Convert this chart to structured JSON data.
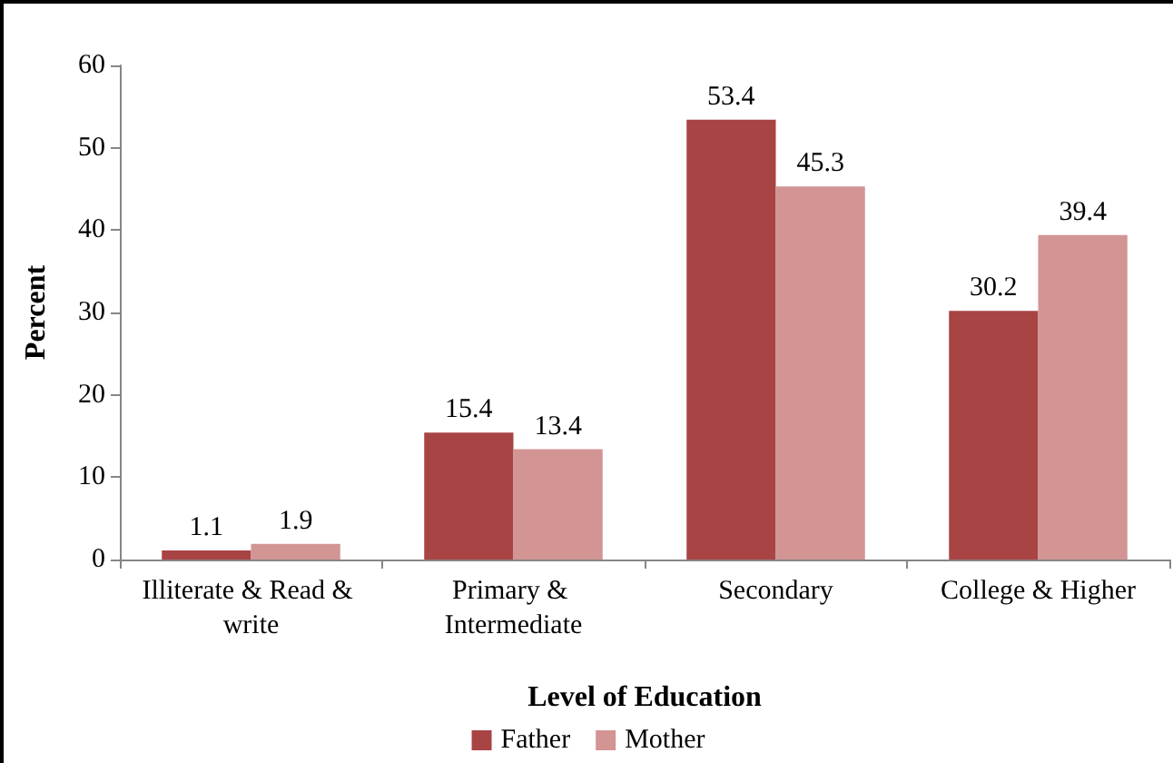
{
  "chart_data": {
    "type": "bar",
    "xlabel": "Level of Education",
    "ylabel": "Percent",
    "categories": [
      "Illiterate & Read & write",
      "Primary & Intermediate",
      "Secondary",
      "College & Higher"
    ],
    "series": [
      {
        "name": "Father",
        "color": "#a84444",
        "values": [
          1.1,
          15.4,
          53.4,
          30.2
        ]
      },
      {
        "name": "Mother",
        "color": "#d39494",
        "values": [
          1.9,
          13.4,
          45.3,
          39.4
        ]
      }
    ],
    "ylim": [
      0,
      60
    ],
    "yticks": [
      0,
      10,
      20,
      30,
      40,
      50,
      60
    ],
    "grid": false,
    "legend": "bottom",
    "data_labels": true
  }
}
